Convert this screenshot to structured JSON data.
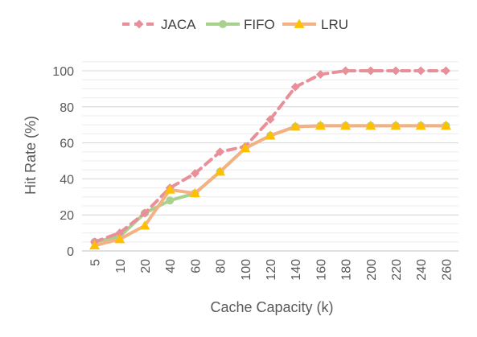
{
  "chart_data": {
    "type": "line",
    "xlabel": "Cache Capacity (k)",
    "ylabel": "Hit Rate (%)",
    "categories": [
      "5",
      "10",
      "20",
      "40",
      "60",
      "80",
      "100",
      "120",
      "140",
      "160",
      "180",
      "200",
      "220",
      "240",
      "260"
    ],
    "ylim": [
      0,
      100
    ],
    "yticks": [
      0,
      20,
      40,
      60,
      80,
      100
    ],
    "grid": true,
    "legend_position": "top",
    "series": [
      {
        "name": "JACA",
        "color": "#e8909a",
        "dash": true,
        "marker": "diamond",
        "values": [
          5,
          10,
          21,
          35,
          43,
          55,
          58,
          73,
          91,
          98,
          100,
          100,
          100,
          100,
          100
        ]
      },
      {
        "name": "FIFO",
        "color": "#a9d18e",
        "dash": false,
        "marker": "circle",
        "values": [
          5,
          8,
          21,
          28,
          32,
          44,
          57,
          64,
          69,
          69.5,
          69.5,
          69.5,
          69.5,
          69.5,
          69.5
        ]
      },
      {
        "name": "LRU",
        "color": "#f4b183",
        "markerColor": "#ffc000",
        "dash": false,
        "marker": "triangle",
        "values": [
          3,
          6.5,
          14,
          34,
          32,
          44,
          57,
          64,
          69,
          69.5,
          69.5,
          69.5,
          69.5,
          69.5,
          69.5
        ]
      }
    ]
  }
}
